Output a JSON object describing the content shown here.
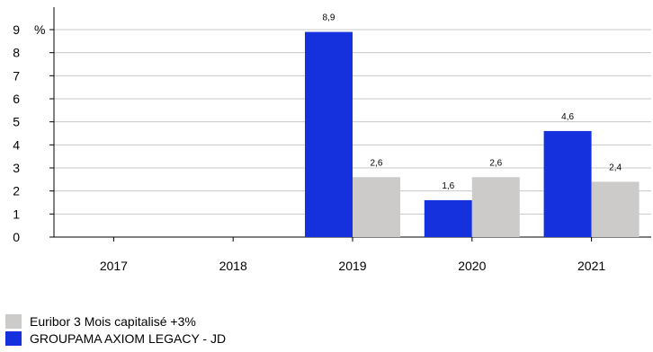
{
  "chart_data": {
    "type": "bar",
    "unit_label": "%",
    "categories": [
      "2017",
      "2018",
      "2019",
      "2020",
      "2021"
    ],
    "series": [
      {
        "name": "GROUPAMA AXIOM LEGACY - JD",
        "color": "#1531de",
        "values": [
          null,
          null,
          8.9,
          1.6,
          4.6
        ],
        "labels": [
          "",
          "",
          "8,9",
          "1,6",
          "4,6"
        ]
      },
      {
        "name": "Euribor 3 Mois capitalisé +3%",
        "color": "#cdcaca",
        "values": [
          null,
          null,
          2.6,
          2.6,
          2.4
        ],
        "labels": [
          "",
          "",
          "2,6",
          "2,6",
          "2,4"
        ]
      }
    ],
    "ylim": [
      0,
      9
    ],
    "yticks": [
      0,
      1,
      2,
      3,
      4,
      5,
      6,
      7,
      8,
      9
    ],
    "grid": true,
    "legend_position": "bottom-left"
  },
  "legend": [
    {
      "label": "Euribor 3 Mois capitalisé +3%",
      "color": "#cdcaca"
    },
    {
      "label": "GROUPAMA AXIOM LEGACY - JD",
      "color": "#1531de"
    }
  ]
}
